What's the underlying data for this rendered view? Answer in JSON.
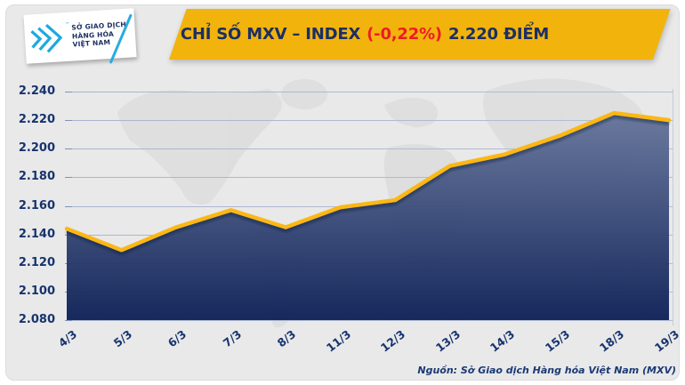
{
  "header": {
    "logo": {
      "line1": "SỞ GIAO DỊCH",
      "line2": "HÀNG HÓA",
      "line3": "VIỆT NAM",
      "trademark": "™"
    },
    "banner": {
      "title_main": "CHỈ SỐ MXV – INDEX",
      "title_change": "(-0,22%)",
      "title_points": "2.220 ĐIỂM"
    }
  },
  "chart_data": {
    "type": "area",
    "title": "CHỈ SỐ MXV – INDEX (-0,22%) 2.220 ĐIỂM",
    "categories": [
      "4/3",
      "5/3",
      "6/3",
      "7/3",
      "8/3",
      "11/3",
      "12/3",
      "13/3",
      "14/3",
      "15/3",
      "18/3",
      "19/3"
    ],
    "values": [
      2144,
      2129,
      2145,
      2157,
      2145,
      2159,
      2164,
      2188,
      2196,
      2209,
      2225,
      2220
    ],
    "unit": "điểm",
    "ylim": [
      2080,
      2240
    ],
    "ytick_step": 20,
    "ytick_labels": [
      "2.080",
      "2.100",
      "2.120",
      "2.140",
      "2.160",
      "2.180",
      "2.200",
      "2.220",
      "2.240"
    ],
    "xlabel": "",
    "ylabel": "",
    "grid": true,
    "legend": false,
    "line_color": "#FDB714",
    "area_gradient_top": "#66759B",
    "area_gradient_bottom": "#0E2157",
    "gridline_color": "#A9B6CE",
    "label_color": "#16336E"
  },
  "footer": {
    "source": "Nguồn: Sở Giao dịch Hàng hóa Việt Nam (MXV)"
  },
  "colors": {
    "banner_gold": "#F2B30D",
    "title_navy": "#1B2F63",
    "change_red": "#ED1C24",
    "logo_cyan": "#1BA9E1",
    "card_bg": "#E9E9E9"
  }
}
